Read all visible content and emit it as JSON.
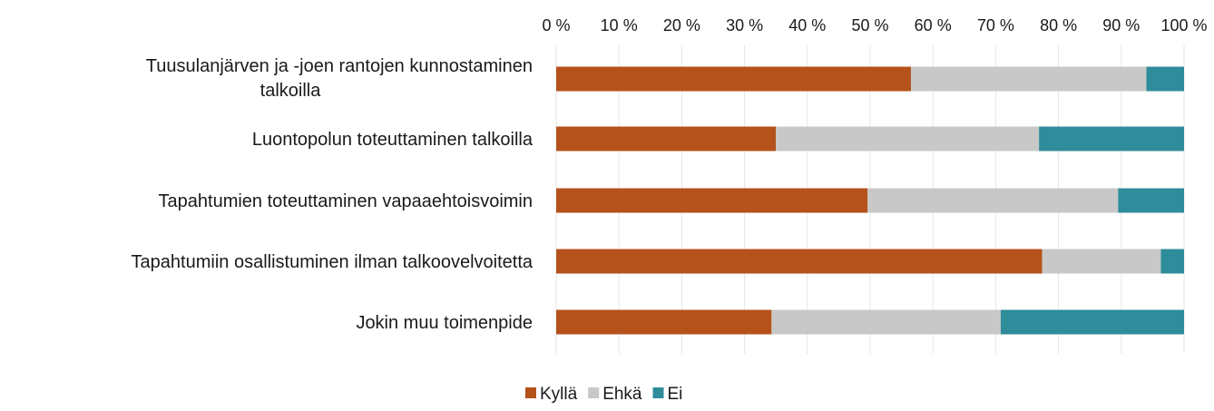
{
  "chart_data": {
    "type": "bar",
    "orientation": "horizontal",
    "stacked": true,
    "categories": [
      [
        "Tuusulanjärven ja -joen rantojen kunnostaminen",
        "talkoilla"
      ],
      [
        "Luontopolun toteuttaminen talkoilla"
      ],
      [
        "Tapahtumien toteuttaminen vapaaehtoisvoimin"
      ],
      [
        "Tapahtumiin osallistuminen ilman talkoovelvoitetta"
      ],
      [
        "Jokin muu toimenpide"
      ]
    ],
    "series": [
      {
        "name": "Kyllä",
        "color": "#b5521b",
        "values": [
          56.5,
          35,
          49.6,
          77.4,
          34.3
        ]
      },
      {
        "name": "Ehkä",
        "color": "#c8c8c8",
        "values": [
          37.5,
          41.9,
          39.9,
          18.9,
          36.5
        ]
      },
      {
        "name": "Ei",
        "color": "#2f8c9a",
        "values": [
          6,
          23.1,
          10.5,
          3.7,
          29.2
        ]
      }
    ],
    "xlim": [
      0,
      100
    ],
    "xticks": [
      "0 %",
      "10 %",
      "20 %",
      "30 %",
      "40 %",
      "50 %",
      "60 %",
      "70 %",
      "80 %",
      "90 %",
      "100 %"
    ],
    "xaxis_position": "top",
    "grid": true,
    "legend_position": "bottom"
  }
}
